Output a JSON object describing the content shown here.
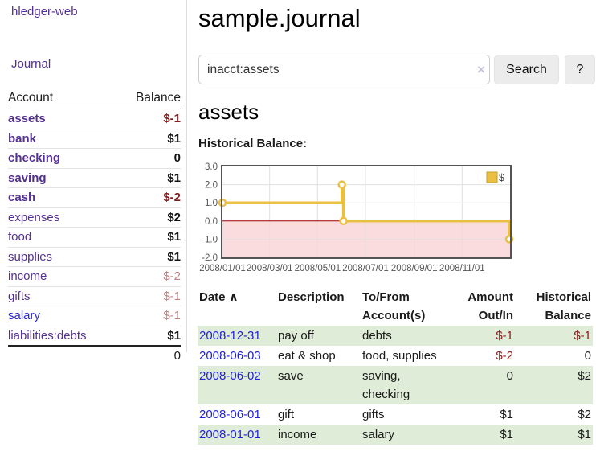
{
  "app": {
    "brand": "hledger-web",
    "nav_journal": "Journal"
  },
  "colors": {
    "link_purple": "#553093",
    "link_blue": "#2a25d8",
    "negative_strong": "#7f1f1f",
    "negative_muted": "#c08081",
    "table_row_green": "#dfecd7",
    "button_gray": "#ececec"
  },
  "sidebar": {
    "header": {
      "account": "Account",
      "balance": "Balance"
    },
    "accounts": [
      {
        "name": "assets",
        "depth": 1,
        "bold": true,
        "balance": "$-1"
      },
      {
        "name": "bank",
        "depth": 2,
        "bold": true,
        "balance": "$1"
      },
      {
        "name": "checking",
        "depth": 3,
        "bold": true,
        "balance": "0"
      },
      {
        "name": "saving",
        "depth": 3,
        "bold": true,
        "balance": "$1"
      },
      {
        "name": "cash",
        "depth": 2,
        "bold": true,
        "balance": "$-2"
      },
      {
        "name": "expenses",
        "depth": 1,
        "bold": false,
        "balance": "$2"
      },
      {
        "name": "food",
        "depth": 2,
        "bold": false,
        "balance": "$1"
      },
      {
        "name": "supplies",
        "depth": 2,
        "bold": false,
        "balance": "$1"
      },
      {
        "name": "income",
        "depth": 1,
        "bold": false,
        "balance": "$-2"
      },
      {
        "name": "gifts",
        "depth": 2,
        "bold": false,
        "balance": "$-1"
      },
      {
        "name": "salary",
        "depth": 2,
        "bold": false,
        "balance": "$-1"
      },
      {
        "name": "liabilities:debts",
        "depth": 1,
        "bold": false,
        "balance": "$1"
      }
    ],
    "total": "0"
  },
  "header": {
    "title": "sample.journal"
  },
  "search": {
    "value": "inacct:assets",
    "clear_icon": "×",
    "button": "Search",
    "help_button": "?"
  },
  "account_page": {
    "title": "assets",
    "chart_label": "Historical Balance:"
  },
  "chart_data": {
    "type": "line",
    "title": "Historical Balance",
    "step": true,
    "series": [
      {
        "name": "$",
        "color": "#e9c044",
        "points": [
          [
            "2008-01-01",
            1
          ],
          [
            "2008-06-01",
            2
          ],
          [
            "2008-06-03",
            0
          ],
          [
            "2008-12-31",
            -1
          ]
        ]
      }
    ],
    "xlim": [
      "2008-01-01",
      "2009-01-01"
    ],
    "ylim": [
      -2,
      3
    ],
    "x_ticks": [
      "2008/01/01",
      "2008/03/01",
      "2008/05/01",
      "2008/07/01",
      "2008/09/01",
      "2008/11/01"
    ],
    "y_ticks": [
      "3.0",
      "2.0",
      "1.0",
      "0.0",
      "-1.0",
      "-2.0"
    ],
    "grid": true,
    "negative_region_color": "#fbdcde",
    "zero_line_color": "#990000",
    "grid_color": "#e0e0e0",
    "border_color": "#545454",
    "legend": {
      "label": "$",
      "position": "top-right"
    }
  },
  "register": {
    "sort_icon": "∧",
    "headers": {
      "date": "Date",
      "description": "Description",
      "accounts": "To/From Account(s)",
      "amount": "Amount Out/In",
      "balance": "Historical Balance"
    },
    "rows": [
      {
        "date": "2008-12-31",
        "description": "pay off",
        "accounts": "debts",
        "amount": "$-1",
        "amount_neg": true,
        "balance": "$-1",
        "balance_neg": true
      },
      {
        "date": "2008-06-03",
        "description": "eat & shop",
        "accounts": "food, supplies",
        "amount": "$-2",
        "amount_neg": true,
        "balance": "0",
        "balance_neg": false
      },
      {
        "date": "2008-06-02",
        "description": "save",
        "accounts": "saving, checking",
        "amount": "0",
        "amount_neg": false,
        "balance": "$2",
        "balance_neg": false
      },
      {
        "date": "2008-06-01",
        "description": "gift",
        "accounts": "gifts",
        "amount": "$1",
        "amount_neg": false,
        "balance": "$2",
        "balance_neg": false
      },
      {
        "date": "2008-01-01",
        "description": "income",
        "accounts": "salary",
        "amount": "$1",
        "amount_neg": false,
        "balance": "$1",
        "balance_neg": false
      }
    ]
  }
}
